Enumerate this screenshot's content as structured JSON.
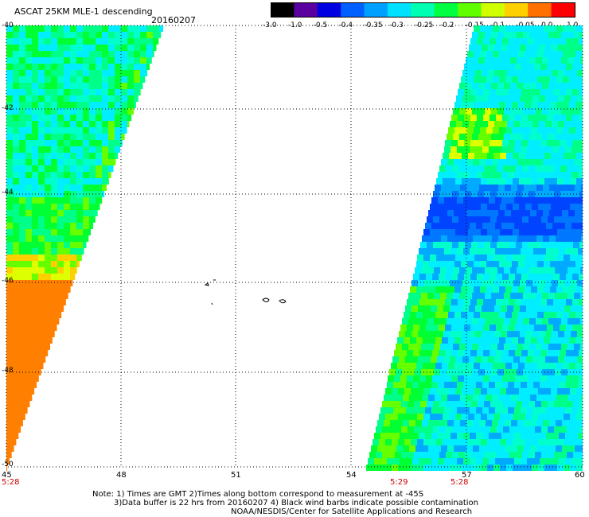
{
  "header": {
    "title": "ASCAT 25KM MLE-1 descending",
    "date": "20160207"
  },
  "colorbar": {
    "labels": [
      "-3.0",
      "-1.0",
      "-0.5",
      "-0.4",
      "-0.35",
      "-0.3",
      "-0.25",
      "-0.2",
      "-0.15",
      "-0.1",
      "-0.05",
      "0.0",
      "1.0"
    ],
    "colors": [
      "#000000",
      "#5a00a0",
      "#0000e0",
      "#0060ff",
      "#00a0ff",
      "#00e0ff",
      "#00ffb0",
      "#00ff40",
      "#60ff00",
      "#d0ff00",
      "#ffd000",
      "#ff7000",
      "#ff0000"
    ]
  },
  "axes": {
    "lat_labels": [
      "-40",
      "-42",
      "-44",
      "-46",
      "-48",
      "-50"
    ],
    "lon_labels": [
      "45",
      "48",
      "51",
      "54",
      "57",
      "60"
    ],
    "time_labels": [
      "5:28",
      "5:29",
      "5:28"
    ]
  },
  "notes": [
    "Note: 1) Times are GMT 2)Times along bottom correspond to measurement at -45S",
    "3)Data buffer is 22 hrs from 20160207 4) Black wind barbs indicate possible contamination",
    "NOAA/NESDIS/Center for Satellite Applications and Research"
  ]
}
